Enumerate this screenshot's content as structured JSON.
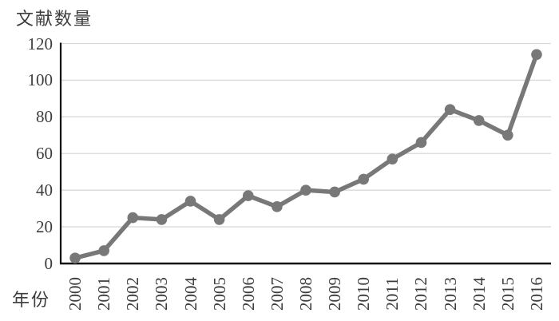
{
  "chart_data": {
    "type": "line",
    "title": "",
    "ylabel": "文献数量",
    "xlabel": "年份",
    "categories": [
      "2000",
      "2001",
      "2002",
      "2003",
      "2004",
      "2005",
      "2006",
      "2007",
      "2008",
      "2009",
      "2010",
      "2011",
      "2012",
      "2013",
      "2014",
      "2015",
      "2016"
    ],
    "series": [
      {
        "name": "文献数量",
        "values": [
          3,
          7,
          25,
          24,
          34,
          24,
          37,
          31,
          40,
          39,
          46,
          57,
          66,
          84,
          78,
          70,
          114
        ]
      }
    ],
    "ylim": [
      0,
      120
    ],
    "yticks": [
      0,
      20,
      40,
      60,
      80,
      100,
      120
    ],
    "grid": true,
    "legend": false,
    "marker": "circle",
    "colors": {
      "line": "#787878",
      "marker": "#787878",
      "grid": "#d9d9d9",
      "axis": "#0d0d0d",
      "text": "#3d3d3d",
      "background": "#ffffff"
    }
  }
}
